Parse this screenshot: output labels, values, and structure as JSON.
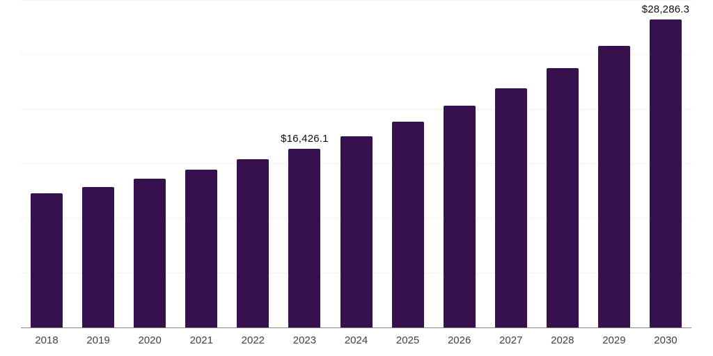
{
  "chart_data": {
    "type": "bar",
    "title": "",
    "xlabel": "",
    "ylabel": "",
    "categories": [
      "2018",
      "2019",
      "2020",
      "2021",
      "2022",
      "2023",
      "2024",
      "2025",
      "2026",
      "2027",
      "2028",
      "2029",
      "2030"
    ],
    "values": [
      12340,
      12890,
      13650,
      14480,
      15430,
      16426.1,
      17580,
      18900,
      20340,
      21980,
      23800,
      25860,
      28286.3
    ],
    "data_labels": {
      "2023": "$16,426.1",
      "2030": "$28,286.3"
    },
    "ylim": [
      0,
      30000
    ],
    "gridlines": [
      5000,
      10000,
      15000,
      20000,
      25000,
      30000
    ],
    "grid": "horizontal-only",
    "legend": "none",
    "y_axis_tick_labels": "none",
    "bar_color": "#36114d",
    "grid_color": "#f2f2f2",
    "axis_line_color": "#848484",
    "x_label_color": "#414141",
    "value_label_color": "#0d0d0d",
    "background_color": "#ffffff"
  }
}
